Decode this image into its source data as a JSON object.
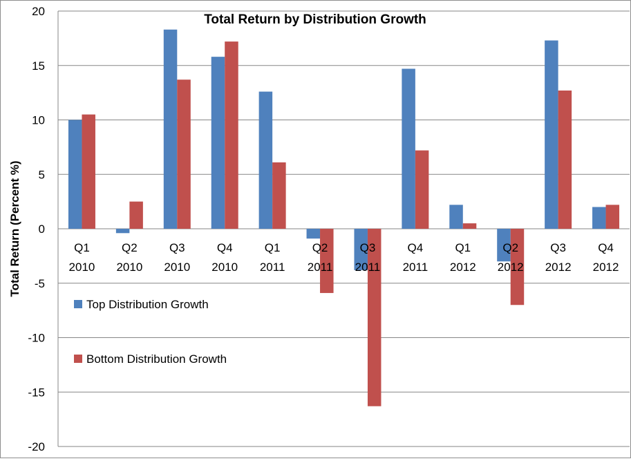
{
  "chart_data": {
    "type": "bar",
    "title": "Total Return by Distribution Growth",
    "xlabel": "",
    "ylabel": "Total Return (Percent %)",
    "ylim": [
      -20,
      20
    ],
    "yticks": [
      20,
      15,
      10,
      5,
      0,
      -5,
      -10,
      -15,
      -20
    ],
    "grid": true,
    "legend_position": "left-middle",
    "categories": [
      [
        "Q1",
        "2010"
      ],
      [
        "Q2",
        "2010"
      ],
      [
        "Q3",
        "2010"
      ],
      [
        "Q4",
        "2010"
      ],
      [
        "Q1",
        "2011"
      ],
      [
        "Q2",
        "2011"
      ],
      [
        "Q3",
        "2011"
      ],
      [
        "Q4",
        "2011"
      ],
      [
        "Q1",
        "2012"
      ],
      [
        "Q2",
        "2012"
      ],
      [
        "Q3",
        "2012"
      ],
      [
        "Q4",
        "2012"
      ]
    ],
    "series": [
      {
        "name": "Top Distribution Growth",
        "color": "#4f81bd",
        "values": [
          10.0,
          -0.4,
          18.3,
          15.8,
          12.6,
          -0.9,
          -3.8,
          14.7,
          2.2,
          -3.0,
          17.3,
          2.0
        ]
      },
      {
        "name": "Bottom Distribution Growth",
        "color": "#c0504d",
        "values": [
          10.5,
          2.5,
          13.7,
          17.2,
          6.1,
          -5.9,
          -16.3,
          7.2,
          0.5,
          -7.0,
          12.7,
          2.2
        ]
      }
    ]
  }
}
